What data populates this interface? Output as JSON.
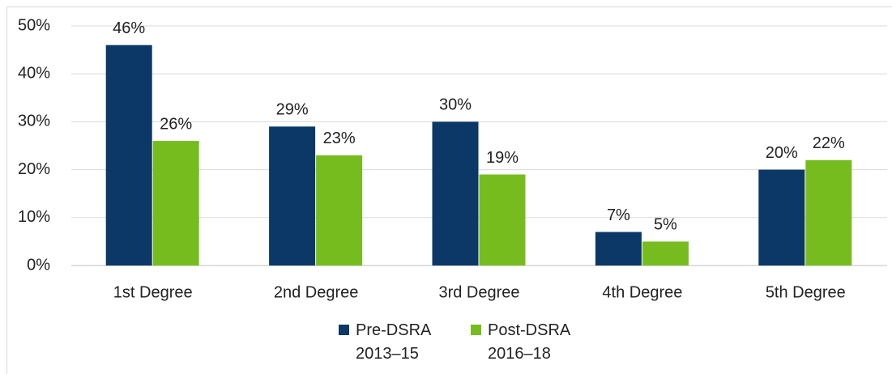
{
  "chart_data": {
    "type": "bar",
    "categories": [
      "1st Degree",
      "2nd Degree",
      "3rd Degree",
      "4th Degree",
      "5th Degree"
    ],
    "series": [
      {
        "name": "Pre-DSRA 2013–15",
        "color": "#0b3866",
        "values": [
          46,
          29,
          30,
          7,
          20
        ],
        "value_labels": [
          "46%",
          "29%",
          "30%",
          "7%",
          "20%"
        ]
      },
      {
        "name": "Post-DSRA 2016–18",
        "color": "#77bc1f",
        "values": [
          26,
          23,
          19,
          5,
          22
        ],
        "value_labels": [
          "26%",
          "23%",
          "19%",
          "5%",
          "22%"
        ]
      }
    ],
    "ylim": [
      0,
      50
    ],
    "yticks": [
      {
        "value": 0,
        "label": "0%"
      },
      {
        "value": 10,
        "label": "10%"
      },
      {
        "value": 20,
        "label": "20%"
      },
      {
        "value": 30,
        "label": "30%"
      },
      {
        "value": 40,
        "label": "40%"
      },
      {
        "value": 50,
        "label": "50%"
      }
    ],
    "grid": true,
    "legend": "bottom"
  }
}
